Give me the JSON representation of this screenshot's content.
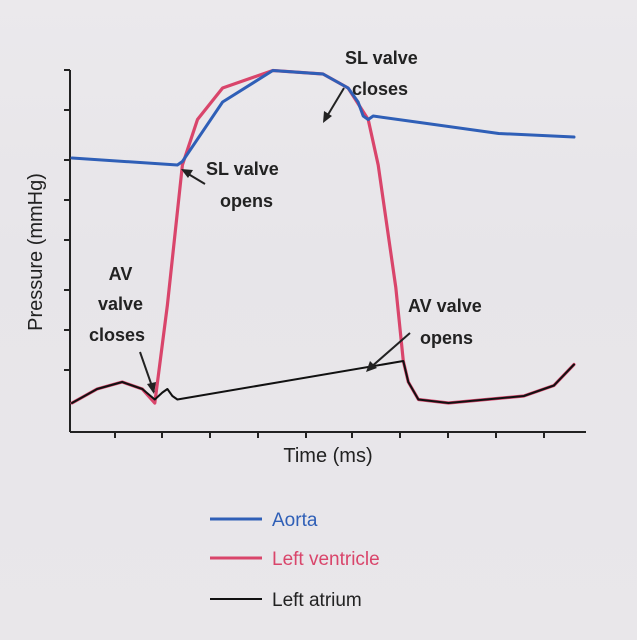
{
  "chart_data": {
    "type": "line",
    "xlabel": "Time (ms)",
    "ylabel": "Pressure (mmHg)",
    "grid": false,
    "legend_placement": "bottom",
    "series": [
      {
        "name": "Aorta",
        "color": "#2f5fb7",
        "points": [
          [
            0.0,
            0.72
          ],
          [
            0.21,
            0.7
          ],
          [
            0.22,
            0.71
          ],
          [
            0.3,
            0.88
          ],
          [
            0.4,
            0.97
          ],
          [
            0.5,
            0.96
          ],
          [
            0.55,
            0.92
          ],
          [
            0.57,
            0.88
          ],
          [
            0.58,
            0.84
          ],
          [
            0.59,
            0.83
          ],
          [
            0.6,
            0.84
          ],
          [
            0.7,
            0.82
          ],
          [
            0.85,
            0.79
          ],
          [
            1.0,
            0.78
          ]
        ]
      },
      {
        "name": "Left ventricle",
        "color": "#d9456b",
        "points": [
          [
            0.0,
            0.02
          ],
          [
            0.05,
            0.06
          ],
          [
            0.1,
            0.08
          ],
          [
            0.14,
            0.06
          ],
          [
            0.165,
            0.02
          ],
          [
            0.19,
            0.3
          ],
          [
            0.22,
            0.7
          ],
          [
            0.25,
            0.83
          ],
          [
            0.3,
            0.92
          ],
          [
            0.4,
            0.97
          ],
          [
            0.5,
            0.96
          ],
          [
            0.55,
            0.92
          ],
          [
            0.59,
            0.83
          ],
          [
            0.61,
            0.7
          ],
          [
            0.645,
            0.35
          ],
          [
            0.66,
            0.14
          ],
          [
            0.67,
            0.08
          ],
          [
            0.69,
            0.03
          ],
          [
            0.75,
            0.02
          ],
          [
            0.9,
            0.04
          ],
          [
            0.96,
            0.07
          ],
          [
            1.0,
            0.13
          ]
        ]
      },
      {
        "name": "Left atrium",
        "color": "#111111",
        "points": [
          [
            0.0,
            0.02
          ],
          [
            0.05,
            0.06
          ],
          [
            0.1,
            0.08
          ],
          [
            0.14,
            0.06
          ],
          [
            0.165,
            0.03
          ],
          [
            0.18,
            0.05
          ],
          [
            0.19,
            0.06
          ],
          [
            0.2,
            0.04
          ],
          [
            0.21,
            0.03
          ],
          [
            0.66,
            0.14
          ],
          [
            0.67,
            0.08
          ],
          [
            0.69,
            0.03
          ],
          [
            0.75,
            0.02
          ],
          [
            0.9,
            0.04
          ],
          [
            0.96,
            0.07
          ],
          [
            1.0,
            0.13
          ]
        ]
      }
    ],
    "annotations": [
      {
        "lines": [
          "AV",
          "valve",
          "closes"
        ],
        "x": 0.165,
        "y": 0.06
      },
      {
        "lines": [
          "SL valve",
          "opens"
        ],
        "x": 0.22,
        "y": 0.71
      },
      {
        "lines": [
          "SL valve",
          "closes"
        ],
        "x": 0.59,
        "y": 0.83
      },
      {
        "lines": [
          "AV valve",
          "opens"
        ],
        "x": 0.66,
        "y": 0.14
      }
    ]
  }
}
